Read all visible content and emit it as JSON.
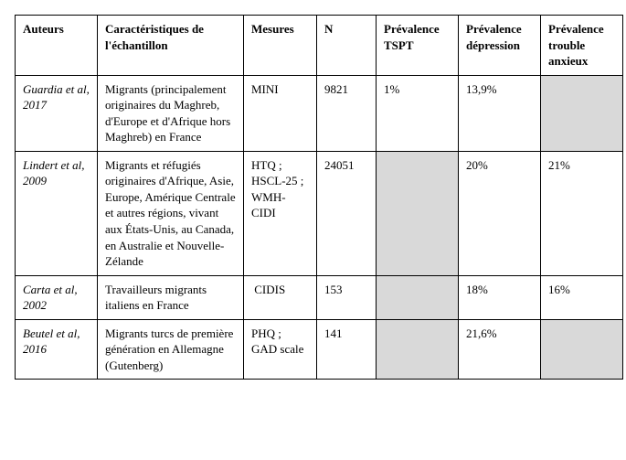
{
  "columns": [
    "Auteurs",
    "Caractéristiques de l'échantillon",
    "Mesures",
    "N",
    "Prévalence TSPT",
    "Prévalence dépression",
    "Prévalence trouble anxieux"
  ],
  "rows": [
    {
      "auteurs_html": "<span class=\"ital\">Guardia et al,</span><br><span class=\"ital\">2017</span>",
      "caract": "Migrants (principalement originaires du Maghreb, d'Europe et d'Afrique hors Maghreb) en France",
      "mesures_html": "MINI",
      "n": "9821",
      "tspt": "1%",
      "tspt_shaded": false,
      "dep": "13,9%",
      "dep_shaded": false,
      "anx": "",
      "anx_shaded": true
    },
    {
      "auteurs_html": "<span class=\"ital\">Lindert et al, 2009</span>",
      "caract": "Migrants et réfugiés originaires d'Afrique, Asie, Europe, Amérique Centrale et autres régions, vivant aux États-Unis, au Canada, en Australie et Nouvelle-Zélande",
      "mesures_html": "HTQ ;<br>HSCL-25 ;<br>WMH-CIDI",
      "n": "24051",
      "tspt": "",
      "tspt_shaded": true,
      "dep": "20%",
      "dep_shaded": false,
      "anx": "21%",
      "anx_shaded": false
    },
    {
      "auteurs_html": "<span class=\"ital\">Carta et al, 2002</span>",
      "caract": "Travailleurs migrants italiens en France",
      "mesures_html": "&nbsp;CIDIS",
      "n": "153",
      "tspt": "",
      "tspt_shaded": true,
      "dep": "18%",
      "dep_shaded": false,
      "anx": "16%",
      "anx_shaded": false
    },
    {
      "auteurs_html": "<span class=\"ital\">Beutel et al, 2016</span>",
      "caract": "Migrants turcs de première génération en Allemagne (Gutenberg)",
      "mesures_html": "PHQ ;<br>GAD scale",
      "n": "141",
      "tspt": "",
      "tspt_shaded": true,
      "dep": "21,6%",
      "dep_shaded": false,
      "anx": "",
      "anx_shaded": true
    }
  ],
  "shaded_color": "#d9d9d9",
  "border_color": "#000000",
  "background_color": "#ffffff",
  "font_family": "Times New Roman"
}
